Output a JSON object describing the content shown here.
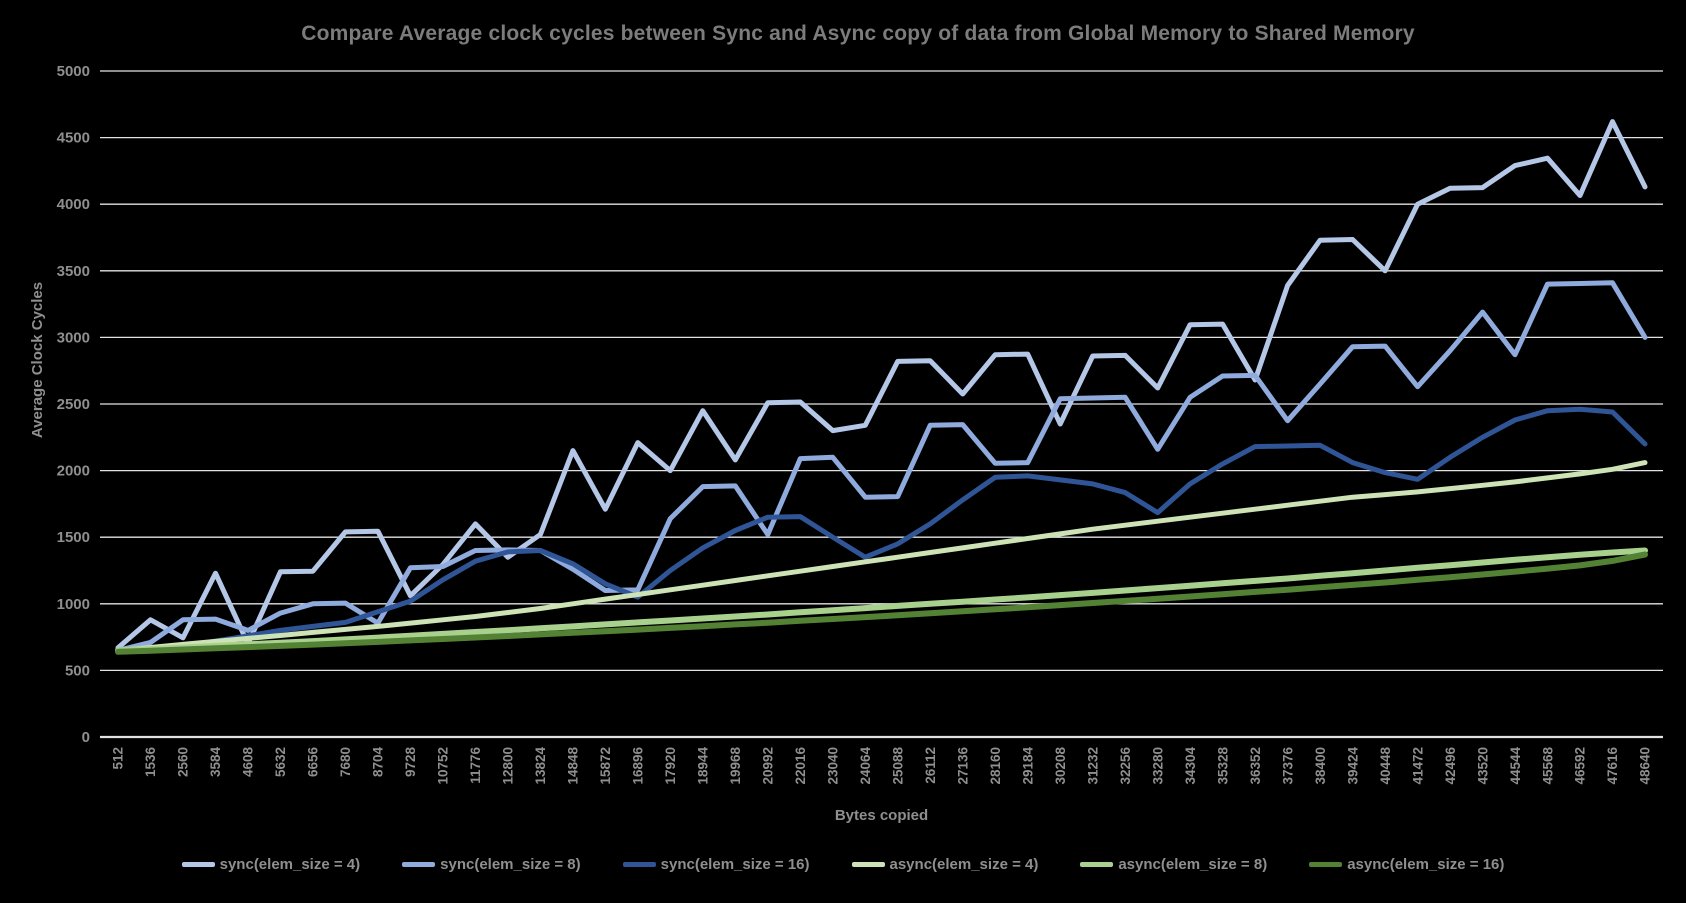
{
  "page": {
    "background": "#000000",
    "text_color": "#8f8f8f",
    "grid_color": "#e2e2e2"
  },
  "chart_data": {
    "type": "line",
    "title": "Compare Average clock cycles between Sync and Async copy of data from Global Memory to Shared Memory",
    "xlabel": "Bytes copied",
    "ylabel": "Average Clock Cycles",
    "ylim": [
      0,
      5000
    ],
    "ytick_step": 500,
    "yticks": [
      0,
      500,
      1000,
      1500,
      2000,
      2500,
      3000,
      3500,
      4000,
      4500,
      5000
    ],
    "grid": true,
    "legend_position": "bottom",
    "categories": [
      512,
      1536,
      2560,
      3584,
      4608,
      5632,
      6656,
      7680,
      8704,
      9728,
      10752,
      11776,
      12800,
      13824,
      14848,
      15872,
      16896,
      17920,
      18944,
      19968,
      20992,
      22016,
      23040,
      24064,
      25088,
      26112,
      27136,
      28160,
      29184,
      30208,
      31232,
      32256,
      33280,
      34304,
      35328,
      36352,
      37376,
      38400,
      39424,
      40448,
      41472,
      42496,
      43520,
      44544,
      45568,
      46592,
      47616,
      48640
    ],
    "series": [
      {
        "name": "sync(elem_size = 4)",
        "color": "#b4c7e7",
        "width": 5,
        "values": [
          670,
          880,
          745,
          1230,
          700,
          1240,
          1245,
          1540,
          1545,
          1060,
          1295,
          1600,
          1350,
          1520,
          2150,
          1710,
          2210,
          2000,
          2450,
          2080,
          2510,
          2515,
          2300,
          2340,
          2820,
          2825,
          2575,
          2870,
          2875,
          2350,
          2860,
          2865,
          2620,
          3095,
          3100,
          2680,
          3390,
          3730,
          3735,
          3500,
          4000,
          4120,
          4125,
          4290,
          4345,
          4065,
          4620,
          4130
        ]
      },
      {
        "name": "sync(elem_size = 8)",
        "color": "#8faadc",
        "width": 5,
        "values": [
          650,
          710,
          880,
          885,
          800,
          930,
          1000,
          1005,
          855,
          1270,
          1280,
          1400,
          1405,
          1400,
          1260,
          1100,
          1105,
          1640,
          1880,
          1885,
          1520,
          2090,
          2100,
          1800,
          1805,
          2340,
          2345,
          2055,
          2060,
          2540,
          2545,
          2550,
          2160,
          2550,
          2710,
          2715,
          2375,
          2650,
          2930,
          2935,
          2630,
          2900,
          3190,
          2870,
          3400,
          3405,
          3410,
          3000
        ]
      },
      {
        "name": "sync(elem_size = 16)",
        "color": "#2f5597",
        "width": 5,
        "values": [
          650,
          655,
          680,
          720,
          760,
          800,
          830,
          860,
          940,
          1020,
          1180,
          1320,
          1390,
          1400,
          1300,
          1150,
          1050,
          1250,
          1420,
          1550,
          1650,
          1655,
          1500,
          1350,
          1450,
          1600,
          1780,
          1950,
          1960,
          1930,
          1900,
          1835,
          1685,
          1900,
          2050,
          2180,
          2185,
          2190,
          2060,
          1985,
          1935,
          2100,
          2250,
          2380,
          2450,
          2460,
          2440,
          2200
        ]
      },
      {
        "name": "async(elem_size = 4)",
        "color": "#cde3b5",
        "width": 5,
        "values": [
          650,
          672,
          695,
          718,
          740,
          762,
          785,
          808,
          830,
          855,
          880,
          905,
          935,
          965,
          1000,
          1035,
          1070,
          1105,
          1140,
          1175,
          1210,
          1245,
          1280,
          1315,
          1350,
          1385,
          1420,
          1455,
          1490,
          1525,
          1560,
          1590,
          1620,
          1650,
          1680,
          1710,
          1740,
          1770,
          1800,
          1820,
          1840,
          1865,
          1890,
          1915,
          1945,
          1975,
          2010,
          2060
        ]
      },
      {
        "name": "async(elem_size = 8)",
        "color": "#a9d18e",
        "width": 6,
        "values": [
          650,
          660,
          672,
          684,
          696,
          708,
          720,
          733,
          746,
          760,
          774,
          788,
          802,
          816,
          830,
          845,
          860,
          875,
          890,
          905,
          920,
          936,
          952,
          968,
          984,
          1000,
          1016,
          1032,
          1048,
          1065,
          1082,
          1100,
          1118,
          1136,
          1154,
          1172,
          1190,
          1210,
          1230,
          1250,
          1270,
          1290,
          1310,
          1330,
          1350,
          1368,
          1385,
          1400
        ]
      },
      {
        "name": "async(elem_size = 16)",
        "color": "#548235",
        "width": 6,
        "values": [
          640,
          648,
          657,
          666,
          675,
          684,
          694,
          704,
          714,
          725,
          736,
          747,
          758,
          770,
          782,
          794,
          806,
          819,
          832,
          845,
          858,
          872,
          886,
          900,
          914,
          929,
          944,
          959,
          974,
          990,
          1006,
          1022,
          1038,
          1055,
          1072,
          1089,
          1106,
          1124,
          1142,
          1160,
          1180,
          1200,
          1220,
          1242,
          1264,
          1288,
          1322,
          1370
        ]
      }
    ]
  }
}
